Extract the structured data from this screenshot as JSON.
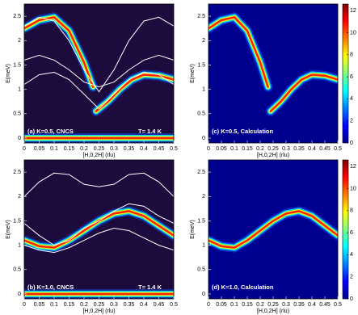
{
  "chart_data": [
    {
      "type": "heatmap",
      "background": "#1d0b3e",
      "xlabel": "[H,0,2H] (rlu)",
      "ylabel": "E(meV)",
      "annotations": [
        "(a) K=0.5, CNCS",
        "T= 1.4 K"
      ],
      "xlim": [
        0,
        0.5
      ],
      "xticks": [
        0,
        0.05,
        0.1,
        0.15,
        0.2,
        0.25,
        0.3,
        0.35,
        0.4,
        0.45,
        0.5
      ],
      "ylim": [
        -0.1,
        2.75
      ],
      "yticks": [
        0,
        0.5,
        1,
        1.5,
        2,
        2.5
      ],
      "bands": [
        {
          "x": [
            0,
            0.05,
            0.1,
            0.15,
            0.2,
            0.23
          ],
          "values": [
            2.25,
            2.42,
            2.48,
            2.2,
            1.55,
            1.05
          ]
        },
        {
          "x": [
            0.24,
            0.28,
            0.32,
            0.36,
            0.4,
            0.45,
            0.5
          ],
          "values": [
            0.55,
            0.75,
            1.0,
            1.2,
            1.3,
            1.28,
            1.2
          ]
        },
        {
          "x": [
            0,
            0.5
          ],
          "values": [
            0,
            0
          ]
        }
      ],
      "lines_color": "#ffffff",
      "lines": [
        {
          "x": [
            0,
            0.05,
            0.1,
            0.15,
            0.2,
            0.25,
            0.3,
            0.35,
            0.4,
            0.45,
            0.5
          ],
          "values": [
            2.3,
            2.48,
            2.4,
            2.0,
            1.4,
            0.95,
            1.4,
            2.0,
            2.4,
            2.48,
            2.3
          ]
        },
        {
          "x": [
            0,
            0.05,
            0.1,
            0.15,
            0.2,
            0.25,
            0.3,
            0.35,
            0.4,
            0.45,
            0.5
          ],
          "values": [
            1.6,
            1.7,
            1.6,
            1.4,
            1.15,
            1.05,
            1.15,
            1.4,
            1.6,
            1.7,
            1.6
          ]
        },
        {
          "x": [
            0,
            0.05,
            0.1,
            0.15,
            0.2,
            0.25,
            0.3,
            0.35,
            0.4,
            0.45,
            0.5
          ],
          "values": [
            1.1,
            1.3,
            1.35,
            1.2,
            0.9,
            0.6,
            0.9,
            1.2,
            1.35,
            1.3,
            1.1
          ]
        }
      ]
    },
    {
      "type": "heatmap",
      "background": "#00008f",
      "xlabel": "[H,0,2H] (rlu)",
      "ylabel": "E(meV)",
      "annotations": [
        "(c) K=0.5, Calculation"
      ],
      "xlim": [
        0,
        0.5
      ],
      "xticks": [
        0,
        0.05,
        0.1,
        0.15,
        0.2,
        0.25,
        0.3,
        0.35,
        0.4,
        0.45,
        0.5
      ],
      "ylim": [
        -0.1,
        2.75
      ],
      "yticks": [
        0,
        0.5,
        1,
        1.5,
        2,
        2.5
      ],
      "bands": [
        {
          "x": [
            0,
            0.05,
            0.1,
            0.15,
            0.2,
            0.23
          ],
          "values": [
            2.25,
            2.42,
            2.48,
            2.2,
            1.55,
            1.05
          ]
        },
        {
          "x": [
            0.24,
            0.28,
            0.32,
            0.36,
            0.4,
            0.45,
            0.5
          ],
          "values": [
            0.55,
            0.75,
            1.0,
            1.2,
            1.3,
            1.28,
            1.2
          ]
        }
      ],
      "clim": [
        0,
        12.6
      ],
      "cticks": [
        0,
        2,
        4,
        6,
        8,
        10,
        12
      ]
    },
    {
      "type": "heatmap",
      "background": "#1d0b3e",
      "xlabel": "[H,0,2H] (rlu)",
      "ylabel": "E(meV)",
      "annotations": [
        "(b) K=1.0, CNCS",
        "T= 1.4 K"
      ],
      "xlim": [
        0,
        0.5
      ],
      "xticks": [
        0,
        0.05,
        0.1,
        0.15,
        0.2,
        0.25,
        0.3,
        0.35,
        0.4,
        0.45,
        0.5
      ],
      "ylim": [
        -0.1,
        2.75
      ],
      "yticks": [
        0,
        0.5,
        1,
        1.5,
        2,
        2.5
      ],
      "bands": [
        {
          "x": [
            0,
            0.05,
            0.1,
            0.15,
            0.2,
            0.25,
            0.3,
            0.35,
            0.4,
            0.45,
            0.5
          ],
          "values": [
            1.1,
            0.98,
            0.95,
            1.1,
            1.3,
            1.5,
            1.65,
            1.7,
            1.6,
            1.4,
            1.2
          ]
        },
        {
          "x": [
            0,
            0.5
          ],
          "values": [
            0,
            0
          ]
        }
      ],
      "lines_color": "#ffffff",
      "lines": [
        {
          "x": [
            0,
            0.05,
            0.1,
            0.15,
            0.2,
            0.25,
            0.3,
            0.35,
            0.4,
            0.45,
            0.5
          ],
          "values": [
            2.0,
            2.3,
            2.48,
            2.45,
            2.25,
            2.2,
            2.25,
            2.45,
            2.48,
            2.3,
            2.0
          ]
        },
        {
          "x": [
            0,
            0.05,
            0.1,
            0.15,
            0.2,
            0.25,
            0.3,
            0.35,
            0.4,
            0.45,
            0.5
          ],
          "values": [
            1.45,
            1.2,
            1.0,
            1.1,
            1.35,
            1.5,
            1.7,
            1.85,
            1.8,
            1.6,
            1.45
          ]
        },
        {
          "x": [
            0,
            0.05,
            0.1,
            0.15,
            0.2,
            0.25,
            0.3,
            0.35,
            0.4,
            0.45,
            0.5
          ],
          "values": [
            1.0,
            0.9,
            0.85,
            0.95,
            1.1,
            1.25,
            1.35,
            1.3,
            1.15,
            1.0,
            0.9
          ]
        }
      ]
    },
    {
      "type": "heatmap",
      "background": "#00008f",
      "xlabel": "[H,0,2H] (rlu)",
      "ylabel": "E(meV)",
      "annotations": [
        "(d) K=1.0, Calculation"
      ],
      "xlim": [
        0,
        0.5
      ],
      "xticks": [
        0,
        0.05,
        0.1,
        0.15,
        0.2,
        0.25,
        0.3,
        0.35,
        0.4,
        0.45,
        0.5
      ],
      "ylim": [
        -0.1,
        2.75
      ],
      "yticks": [
        0,
        0.5,
        1,
        1.5,
        2,
        2.5
      ],
      "bands": [
        {
          "x": [
            0,
            0.05,
            0.1,
            0.15,
            0.2,
            0.25,
            0.3,
            0.35,
            0.4,
            0.45,
            0.5
          ],
          "values": [
            1.1,
            0.98,
            0.95,
            1.1,
            1.3,
            1.5,
            1.65,
            1.7,
            1.6,
            1.4,
            1.2
          ]
        }
      ],
      "clim": [
        0,
        12.6
      ],
      "cticks": [
        0,
        2,
        4,
        6,
        8,
        10,
        12
      ]
    }
  ]
}
